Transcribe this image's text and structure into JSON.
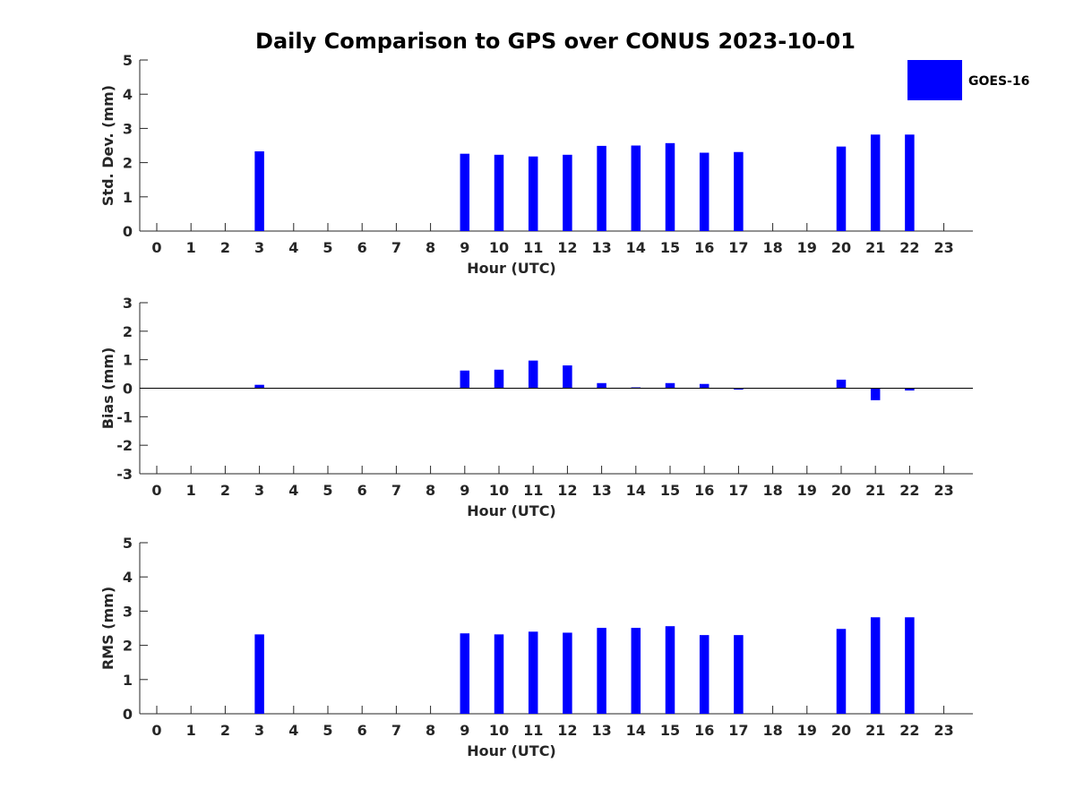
{
  "title": "Daily Comparison to GPS over CONUS 2023-10-01",
  "colors": {
    "bar": "#0000ff",
    "axis": "#262626",
    "legend_border": "#262626"
  },
  "legend": {
    "label": "GOES-16",
    "placement": "top-right"
  },
  "chart_data": [
    {
      "type": "bar",
      "xlabel": "Hour (UTC)",
      "ylabel": "Std. Dev. (mm)",
      "ylim": [
        0,
        5
      ],
      "yticks": [
        0,
        1,
        2,
        3,
        4,
        5
      ],
      "xticks": [
        "0",
        "1",
        "2",
        "3",
        "4",
        "5",
        "6",
        "7",
        "8",
        "9",
        "10",
        "11",
        "12",
        "13",
        "14",
        "15",
        "16",
        "17",
        "18",
        "19",
        "20",
        "21",
        "22",
        "23"
      ],
      "series": [
        {
          "name": "GOES-16",
          "points": [
            {
              "x": 3,
              "y": 2.33
            },
            {
              "x": 9,
              "y": 2.26
            },
            {
              "x": 10,
              "y": 2.23
            },
            {
              "x": 11,
              "y": 2.18
            },
            {
              "x": 12,
              "y": 2.23
            },
            {
              "x": 13,
              "y": 2.49
            },
            {
              "x": 14,
              "y": 2.5
            },
            {
              "x": 15,
              "y": 2.57
            },
            {
              "x": 16,
              "y": 2.29
            },
            {
              "x": 17,
              "y": 2.31
            },
            {
              "x": 20,
              "y": 2.47
            },
            {
              "x": 21,
              "y": 2.82
            },
            {
              "x": 22,
              "y": 2.82
            }
          ]
        }
      ]
    },
    {
      "type": "bar",
      "xlabel": "Hour (UTC)",
      "ylabel": "Bias (mm)",
      "ylim": [
        -3,
        3
      ],
      "yticks": [
        -3,
        -2,
        -1,
        0,
        1,
        2,
        3
      ],
      "xticks": [
        "0",
        "1",
        "2",
        "3",
        "4",
        "5",
        "6",
        "7",
        "8",
        "9",
        "10",
        "11",
        "12",
        "13",
        "14",
        "15",
        "16",
        "17",
        "18",
        "19",
        "20",
        "21",
        "22",
        "23"
      ],
      "series": [
        {
          "name": "GOES-16",
          "points": [
            {
              "x": 3,
              "y": 0.12
            },
            {
              "x": 9,
              "y": 0.62
            },
            {
              "x": 10,
              "y": 0.65
            },
            {
              "x": 11,
              "y": 0.97
            },
            {
              "x": 12,
              "y": 0.8
            },
            {
              "x": 13,
              "y": 0.18
            },
            {
              "x": 14,
              "y": 0.03
            },
            {
              "x": 15,
              "y": 0.18
            },
            {
              "x": 16,
              "y": 0.15
            },
            {
              "x": 17,
              "y": -0.05
            },
            {
              "x": 20,
              "y": 0.3
            },
            {
              "x": 21,
              "y": -0.42
            },
            {
              "x": 22,
              "y": -0.08
            }
          ]
        }
      ]
    },
    {
      "type": "bar",
      "xlabel": "Hour (UTC)",
      "ylabel": "RMS (mm)",
      "ylim": [
        0,
        5
      ],
      "yticks": [
        0,
        1,
        2,
        3,
        4,
        5
      ],
      "xticks": [
        "0",
        "1",
        "2",
        "3",
        "4",
        "5",
        "6",
        "7",
        "8",
        "9",
        "10",
        "11",
        "12",
        "13",
        "14",
        "15",
        "16",
        "17",
        "18",
        "19",
        "20",
        "21",
        "22",
        "23"
      ],
      "series": [
        {
          "name": "GOES-16",
          "points": [
            {
              "x": 3,
              "y": 2.32
            },
            {
              "x": 9,
              "y": 2.35
            },
            {
              "x": 10,
              "y": 2.32
            },
            {
              "x": 11,
              "y": 2.4
            },
            {
              "x": 12,
              "y": 2.37
            },
            {
              "x": 13,
              "y": 2.51
            },
            {
              "x": 14,
              "y": 2.51
            },
            {
              "x": 15,
              "y": 2.56
            },
            {
              "x": 16,
              "y": 2.3
            },
            {
              "x": 17,
              "y": 2.3
            },
            {
              "x": 20,
              "y": 2.48
            },
            {
              "x": 21,
              "y": 2.82
            },
            {
              "x": 22,
              "y": 2.82
            }
          ]
        }
      ]
    }
  ]
}
